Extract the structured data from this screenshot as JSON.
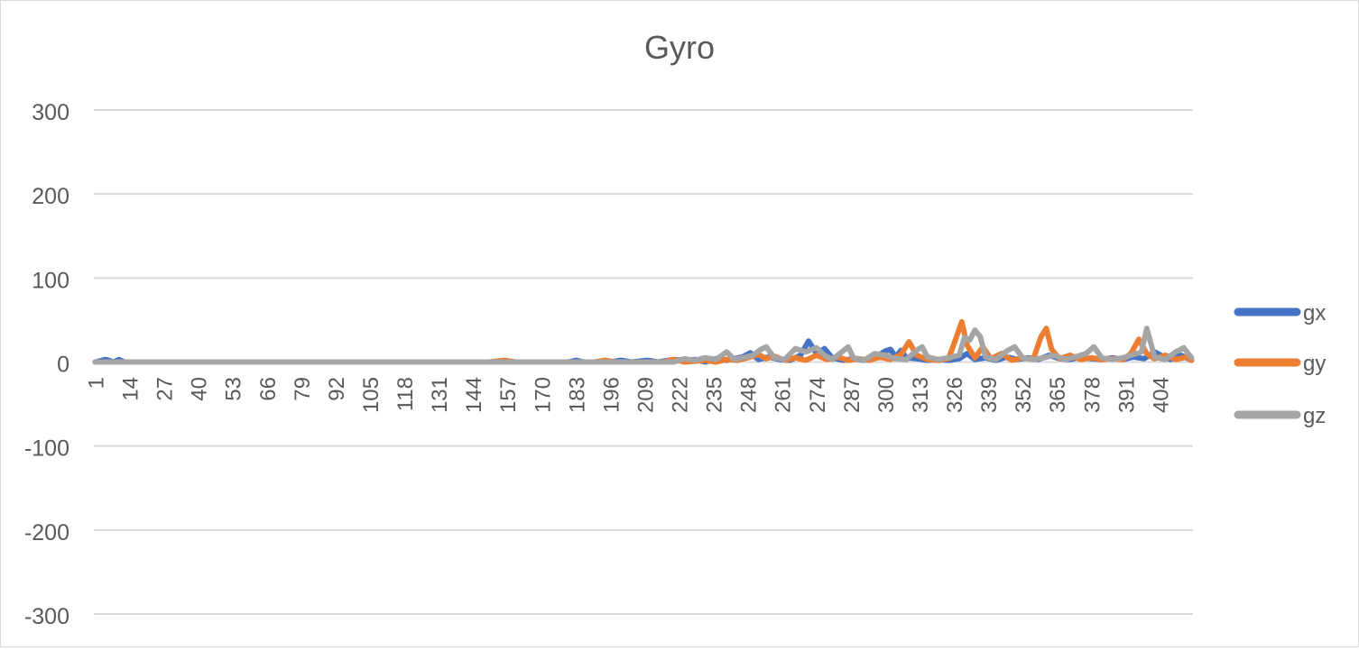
{
  "chart_data": {
    "type": "line",
    "title": "Gyro",
    "xlabel": "",
    "ylabel": "",
    "ylim": [
      -300,
      300
    ],
    "yticks": [
      300,
      200,
      100,
      0,
      -100,
      -200,
      -300
    ],
    "x_range": [
      1,
      416
    ],
    "xticks": [
      1,
      14,
      27,
      40,
      53,
      66,
      79,
      92,
      105,
      118,
      131,
      144,
      157,
      170,
      183,
      196,
      209,
      222,
      235,
      248,
      261,
      274,
      287,
      300,
      313,
      326,
      339,
      352,
      365,
      378,
      391,
      404
    ],
    "grid": true,
    "legend_position": "right",
    "series": [
      {
        "name": "gx",
        "color": "#4472c4",
        "points": [
          [
            1,
            0
          ],
          [
            5,
            3
          ],
          [
            8,
            0
          ],
          [
            10,
            3
          ],
          [
            12,
            0
          ],
          [
            60,
            0
          ],
          [
            120,
            0
          ],
          [
            180,
            0
          ],
          [
            183,
            2
          ],
          [
            186,
            0
          ],
          [
            196,
            0
          ],
          [
            200,
            2
          ],
          [
            204,
            0
          ],
          [
            210,
            2
          ],
          [
            214,
            0
          ],
          [
            220,
            3
          ],
          [
            224,
            2
          ],
          [
            228,
            3
          ],
          [
            232,
            0
          ],
          [
            236,
            4
          ],
          [
            240,
            2
          ],
          [
            246,
            6
          ],
          [
            249,
            11
          ],
          [
            252,
            3
          ],
          [
            256,
            6
          ],
          [
            260,
            3
          ],
          [
            264,
            2
          ],
          [
            268,
            8
          ],
          [
            271,
            25
          ],
          [
            274,
            10
          ],
          [
            277,
            16
          ],
          [
            280,
            5
          ],
          [
            284,
            2
          ],
          [
            288,
            4
          ],
          [
            292,
            2
          ],
          [
            296,
            5
          ],
          [
            300,
            13
          ],
          [
            302,
            15
          ],
          [
            304,
            6
          ],
          [
            306,
            14
          ],
          [
            308,
            5
          ],
          [
            312,
            4
          ],
          [
            316,
            2
          ],
          [
            320,
            3
          ],
          [
            324,
            2
          ],
          [
            328,
            4
          ],
          [
            331,
            10
          ],
          [
            334,
            3
          ],
          [
            338,
            5
          ],
          [
            342,
            2
          ],
          [
            346,
            6
          ],
          [
            350,
            3
          ],
          [
            354,
            5
          ],
          [
            358,
            3
          ],
          [
            362,
            8
          ],
          [
            366,
            4
          ],
          [
            370,
            3
          ],
          [
            374,
            6
          ],
          [
            378,
            4
          ],
          [
            382,
            3
          ],
          [
            386,
            5
          ],
          [
            390,
            3
          ],
          [
            394,
            6
          ],
          [
            398,
            4
          ],
          [
            402,
            12
          ],
          [
            405,
            7
          ],
          [
            408,
            3
          ],
          [
            412,
            8
          ],
          [
            416,
            2
          ]
        ]
      },
      {
        "name": "gy",
        "color": "#ed7d31",
        "points": [
          [
            1,
            0
          ],
          [
            150,
            0
          ],
          [
            156,
            2
          ],
          [
            160,
            0
          ],
          [
            190,
            0
          ],
          [
            194,
            2
          ],
          [
            198,
            0
          ],
          [
            216,
            0
          ],
          [
            220,
            3
          ],
          [
            224,
            0
          ],
          [
            232,
            2
          ],
          [
            236,
            0
          ],
          [
            240,
            3
          ],
          [
            244,
            2
          ],
          [
            248,
            5
          ],
          [
            252,
            9
          ],
          [
            255,
            4
          ],
          [
            258,
            7
          ],
          [
            262,
            2
          ],
          [
            266,
            5
          ],
          [
            270,
            2
          ],
          [
            274,
            8
          ],
          [
            278,
            3
          ],
          [
            282,
            6
          ],
          [
            286,
            2
          ],
          [
            290,
            4
          ],
          [
            294,
            2
          ],
          [
            298,
            6
          ],
          [
            302,
            3
          ],
          [
            306,
            9
          ],
          [
            309,
            24
          ],
          [
            312,
            8
          ],
          [
            316,
            3
          ],
          [
            320,
            2
          ],
          [
            324,
            4
          ],
          [
            327,
            30
          ],
          [
            329,
            48
          ],
          [
            331,
            20
          ],
          [
            334,
            5
          ],
          [
            337,
            18
          ],
          [
            340,
            4
          ],
          [
            344,
            10
          ],
          [
            348,
            2
          ],
          [
            352,
            5
          ],
          [
            356,
            3
          ],
          [
            359,
            30
          ],
          [
            361,
            40
          ],
          [
            363,
            15
          ],
          [
            366,
            4
          ],
          [
            370,
            8
          ],
          [
            374,
            3
          ],
          [
            378,
            5
          ],
          [
            382,
            3
          ],
          [
            386,
            4
          ],
          [
            390,
            3
          ],
          [
            393,
            10
          ],
          [
            396,
            27
          ],
          [
            399,
            10
          ],
          [
            402,
            4
          ],
          [
            406,
            8
          ],
          [
            410,
            3
          ],
          [
            414,
            6
          ],
          [
            416,
            2
          ]
        ]
      },
      {
        "name": "gz",
        "color": "#a5a5a5",
        "points": [
          [
            1,
            0
          ],
          [
            100,
            0
          ],
          [
            200,
            0
          ],
          [
            220,
            0
          ],
          [
            224,
            4
          ],
          [
            228,
            2
          ],
          [
            232,
            5
          ],
          [
            236,
            3
          ],
          [
            240,
            12
          ],
          [
            243,
            3
          ],
          [
            246,
            5
          ],
          [
            250,
            8
          ],
          [
            253,
            15
          ],
          [
            255,
            18
          ],
          [
            258,
            5
          ],
          [
            262,
            3
          ],
          [
            266,
            16
          ],
          [
            270,
            12
          ],
          [
            274,
            17
          ],
          [
            277,
            8
          ],
          [
            280,
            3
          ],
          [
            284,
            13
          ],
          [
            286,
            18
          ],
          [
            288,
            5
          ],
          [
            292,
            2
          ],
          [
            296,
            10
          ],
          [
            300,
            8
          ],
          [
            304,
            4
          ],
          [
            308,
            3
          ],
          [
            312,
            14
          ],
          [
            314,
            18
          ],
          [
            316,
            6
          ],
          [
            320,
            3
          ],
          [
            324,
            5
          ],
          [
            328,
            8
          ],
          [
            330,
            29
          ],
          [
            332,
            26
          ],
          [
            334,
            38
          ],
          [
            336,
            30
          ],
          [
            338,
            6
          ],
          [
            342,
            3
          ],
          [
            346,
            13
          ],
          [
            349,
            18
          ],
          [
            352,
            5
          ],
          [
            356,
            3
          ],
          [
            360,
            5
          ],
          [
            364,
            8
          ],
          [
            368,
            3
          ],
          [
            372,
            6
          ],
          [
            376,
            10
          ],
          [
            379,
            18
          ],
          [
            382,
            5
          ],
          [
            386,
            3
          ],
          [
            390,
            5
          ],
          [
            394,
            9
          ],
          [
            397,
            12
          ],
          [
            399,
            40
          ],
          [
            402,
            6
          ],
          [
            406,
            3
          ],
          [
            410,
            12
          ],
          [
            413,
            17
          ],
          [
            416,
            5
          ]
        ]
      }
    ]
  }
}
